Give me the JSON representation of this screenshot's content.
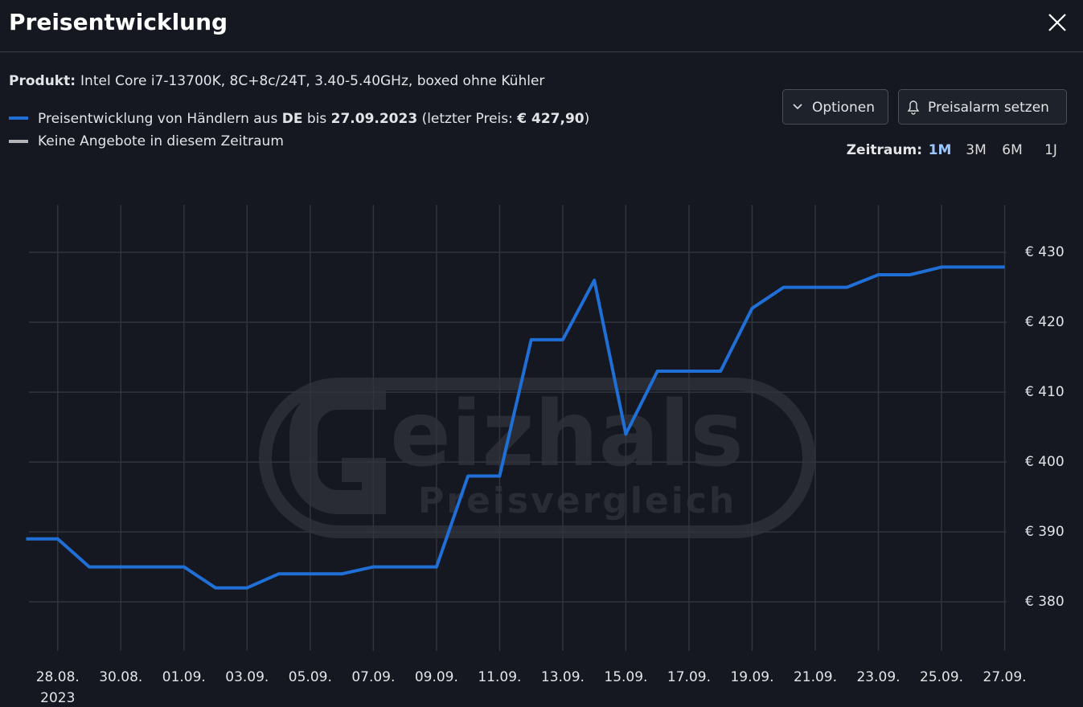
{
  "header": {
    "title": "Preisentwicklung"
  },
  "product": {
    "label": "Produkt:",
    "name": "Intel Core i7-13700K, 8C+8c/24T, 3.40-5.40GHz, boxed ohne Kühler"
  },
  "buttons": {
    "options": "Optionen",
    "alarm": "Preisalarm setzen"
  },
  "range": {
    "label": "Zeitraum:",
    "options": [
      "1M",
      "3M",
      "6M",
      "1J"
    ],
    "active": 0
  },
  "watermark": {
    "brand": "eizhals",
    "tagline": "Preisvergleich"
  },
  "chart_data": {
    "type": "line",
    "categories": [
      null,
      "28.08.",
      null,
      "30.08.",
      null,
      "01.09.",
      null,
      "03.09.",
      null,
      "05.09.",
      null,
      "07.09.",
      null,
      "09.09.",
      null,
      "11.09.",
      null,
      "13.09.",
      null,
      "15.09.",
      null,
      "17.09.",
      null,
      "19.09.",
      null,
      "21.09.",
      null,
      "23.09.",
      null,
      "25.09.",
      null,
      "27.09."
    ],
    "x_year": "2023",
    "series": [
      {
        "name_parts": [
          "Preisentwicklung von Händlern aus ",
          "DE",
          " bis ",
          "27.09.2023",
          " (letzter Preis: ",
          "€ 427,90",
          ")"
        ],
        "color": "#1f6fd6",
        "values": [
          389,
          389,
          385,
          385,
          385,
          385,
          382,
          382,
          384,
          384,
          384,
          385,
          385,
          385,
          398,
          398,
          417.5,
          417.5,
          426,
          404,
          413,
          413,
          413,
          422,
          425,
          425,
          425,
          426.8,
          426.8,
          427.9,
          427.9,
          427.9
        ]
      }
    ],
    "no_offer": {
      "name": "Keine Angebote in diesem Zeitraum",
      "color": "#b4b4b4"
    },
    "ylim": [
      373,
      436.8
    ],
    "yticks": [
      {
        "value": 380,
        "label": "€ 380"
      },
      {
        "value": 390,
        "label": "€ 390"
      },
      {
        "value": 400,
        "label": "€ 400"
      },
      {
        "value": 410,
        "label": "€ 410"
      },
      {
        "value": 420,
        "label": "€ 420"
      },
      {
        "value": 430,
        "label": "€ 430"
      }
    ],
    "y_axis_side": "right",
    "grid": true
  }
}
